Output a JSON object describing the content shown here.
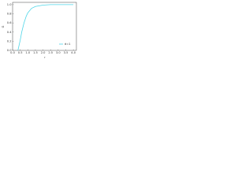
{
  "chart_data": {
    "type": "line",
    "x_label": "r",
    "y_label": "G",
    "x": [
      0.35,
      0.5,
      0.6,
      0.75,
      0.9,
      1.0,
      1.25,
      1.5,
      2.0,
      2.5,
      3.0,
      3.5,
      4.0
    ],
    "series": [
      {
        "name": "d=1",
        "color": "#4fd6e8",
        "values": [
          0,
          0.22,
          0.4,
          0.6,
          0.75,
          0.82,
          0.92,
          0.96,
          0.99,
          1.0,
          1.0,
          1.0,
          1.0
        ]
      }
    ],
    "xlim": [
      0,
      4.2
    ],
    "ylim": [
      0,
      1.05
    ],
    "xticks": [
      {
        "value": 0,
        "label": "0.0"
      },
      {
        "value": 0.5,
        "label": "0.5"
      },
      {
        "value": 1,
        "label": "1.0"
      },
      {
        "value": 1.5,
        "label": "1.5"
      },
      {
        "value": 2,
        "label": "2.0"
      },
      {
        "value": 2.5,
        "label": "2.5"
      },
      {
        "value": 3,
        "label": "3.0"
      },
      {
        "value": 3.5,
        "label": "3.5"
      },
      {
        "value": 4,
        "label": "4.0"
      }
    ],
    "yticks": [
      {
        "value": 0,
        "label": "0.0"
      },
      {
        "value": 0.2,
        "label": "0.2"
      },
      {
        "value": 0.4,
        "label": "0.4"
      },
      {
        "value": 0.6,
        "label": "0.6"
      },
      {
        "value": 0.8,
        "label": "0.8"
      },
      {
        "value": 1,
        "label": "1.0"
      }
    ],
    "legend": "lower right"
  }
}
